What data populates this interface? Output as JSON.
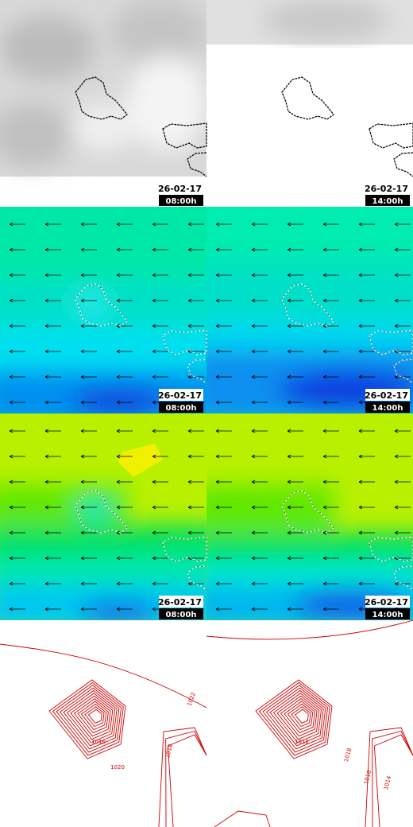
{
  "panels": [
    {
      "date": "26-02-17",
      "time": "08:00h"
    },
    {
      "date": "26-02-17",
      "time": "14:00h"
    },
    {
      "date": "26-02-17",
      "time": "08:00h"
    },
    {
      "date": "26-02-17",
      "time": "14:00h"
    },
    {
      "date": "26-02-17",
      "time": "08:00h"
    },
    {
      "date": "26-02-17",
      "time": "14:00h"
    }
  ],
  "contour_panels": [
    {
      "labels": [
        "1022",
        "1016",
        "1020",
        "1018"
      ]
    },
    {
      "labels": [
        "1016",
        "1012",
        "1018",
        "1014"
      ]
    }
  ]
}
